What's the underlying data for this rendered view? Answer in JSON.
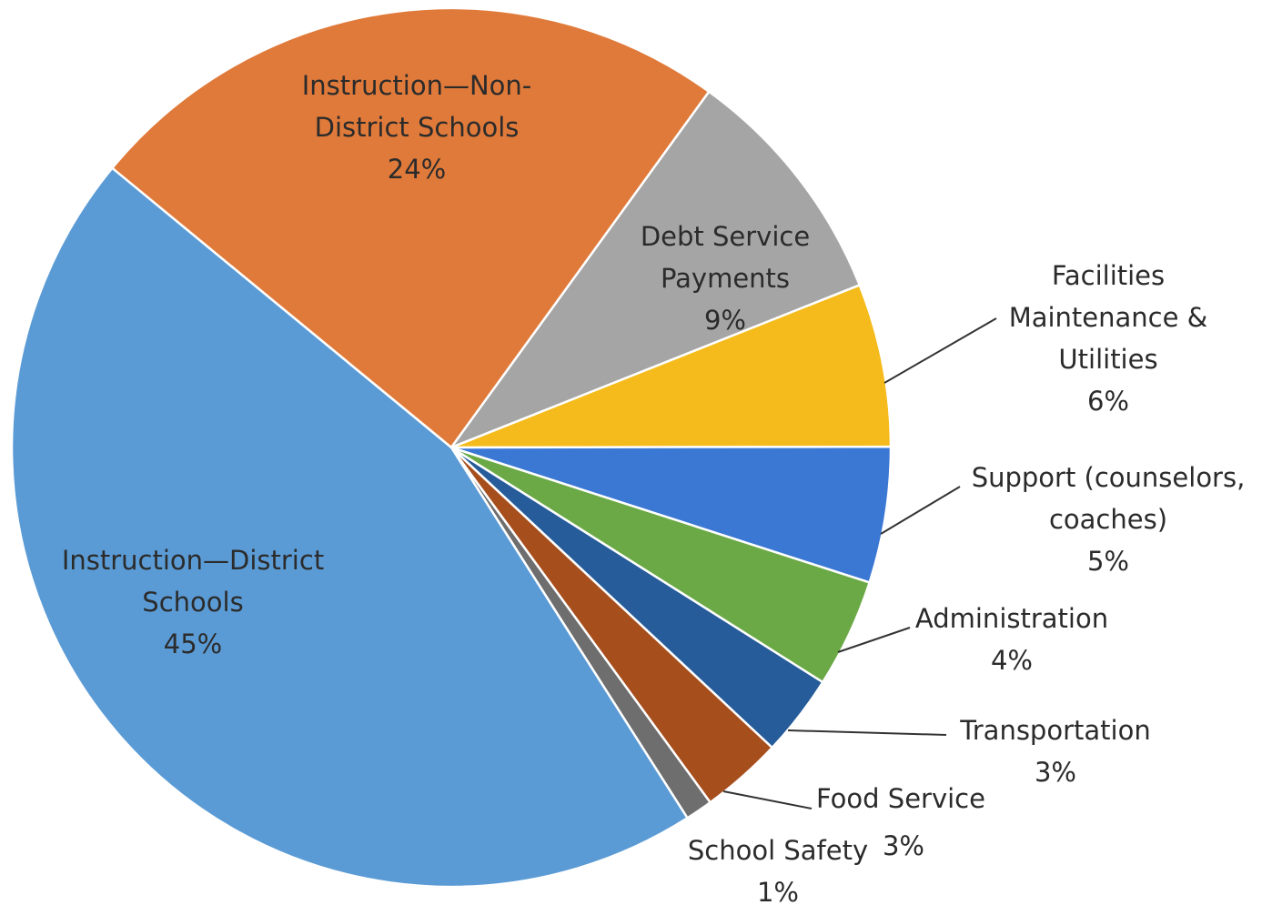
{
  "chart_data": {
    "type": "pie",
    "title": "",
    "slices": [
      {
        "label_lines": [
          "Instruction—District",
          "Schools"
        ],
        "value_text": "45%",
        "value": 45,
        "color": "#5b9bd5"
      },
      {
        "label_lines": [
          "Instruction—Non-",
          "District Schools"
        ],
        "value_text": "24%",
        "value": 24,
        "color": "#e07a3a"
      },
      {
        "label_lines": [
          "Debt Service",
          "Payments"
        ],
        "value_text": "9%",
        "value": 9,
        "color": "#a5a5a5"
      },
      {
        "label_lines": [
          "Facilities",
          "Maintenance &",
          "Utilities"
        ],
        "value_text": "6%",
        "value": 6,
        "color": "#f5bb1c"
      },
      {
        "label_lines": [
          "Support (counselors,",
          "coaches)"
        ],
        "value_text": "5%",
        "value": 5,
        "color": "#3b78d4"
      },
      {
        "label_lines": [
          "Administration"
        ],
        "value_text": "4%",
        "value": 4,
        "color": "#6aa945"
      },
      {
        "label_lines": [
          "Transportation"
        ],
        "value_text": "3%",
        "value": 3,
        "color": "#275c9a"
      },
      {
        "label_lines": [
          "Food Service"
        ],
        "value_text": "3%",
        "value": 3,
        "color": "#a74e1d"
      },
      {
        "label_lines": [
          "School Safety"
        ],
        "value_text": "1%",
        "value": 1,
        "color": "#6e6e6e"
      }
    ],
    "start_slice": "Instruction—Non-District Schools",
    "direction": "clockwise",
    "legend": "none"
  }
}
